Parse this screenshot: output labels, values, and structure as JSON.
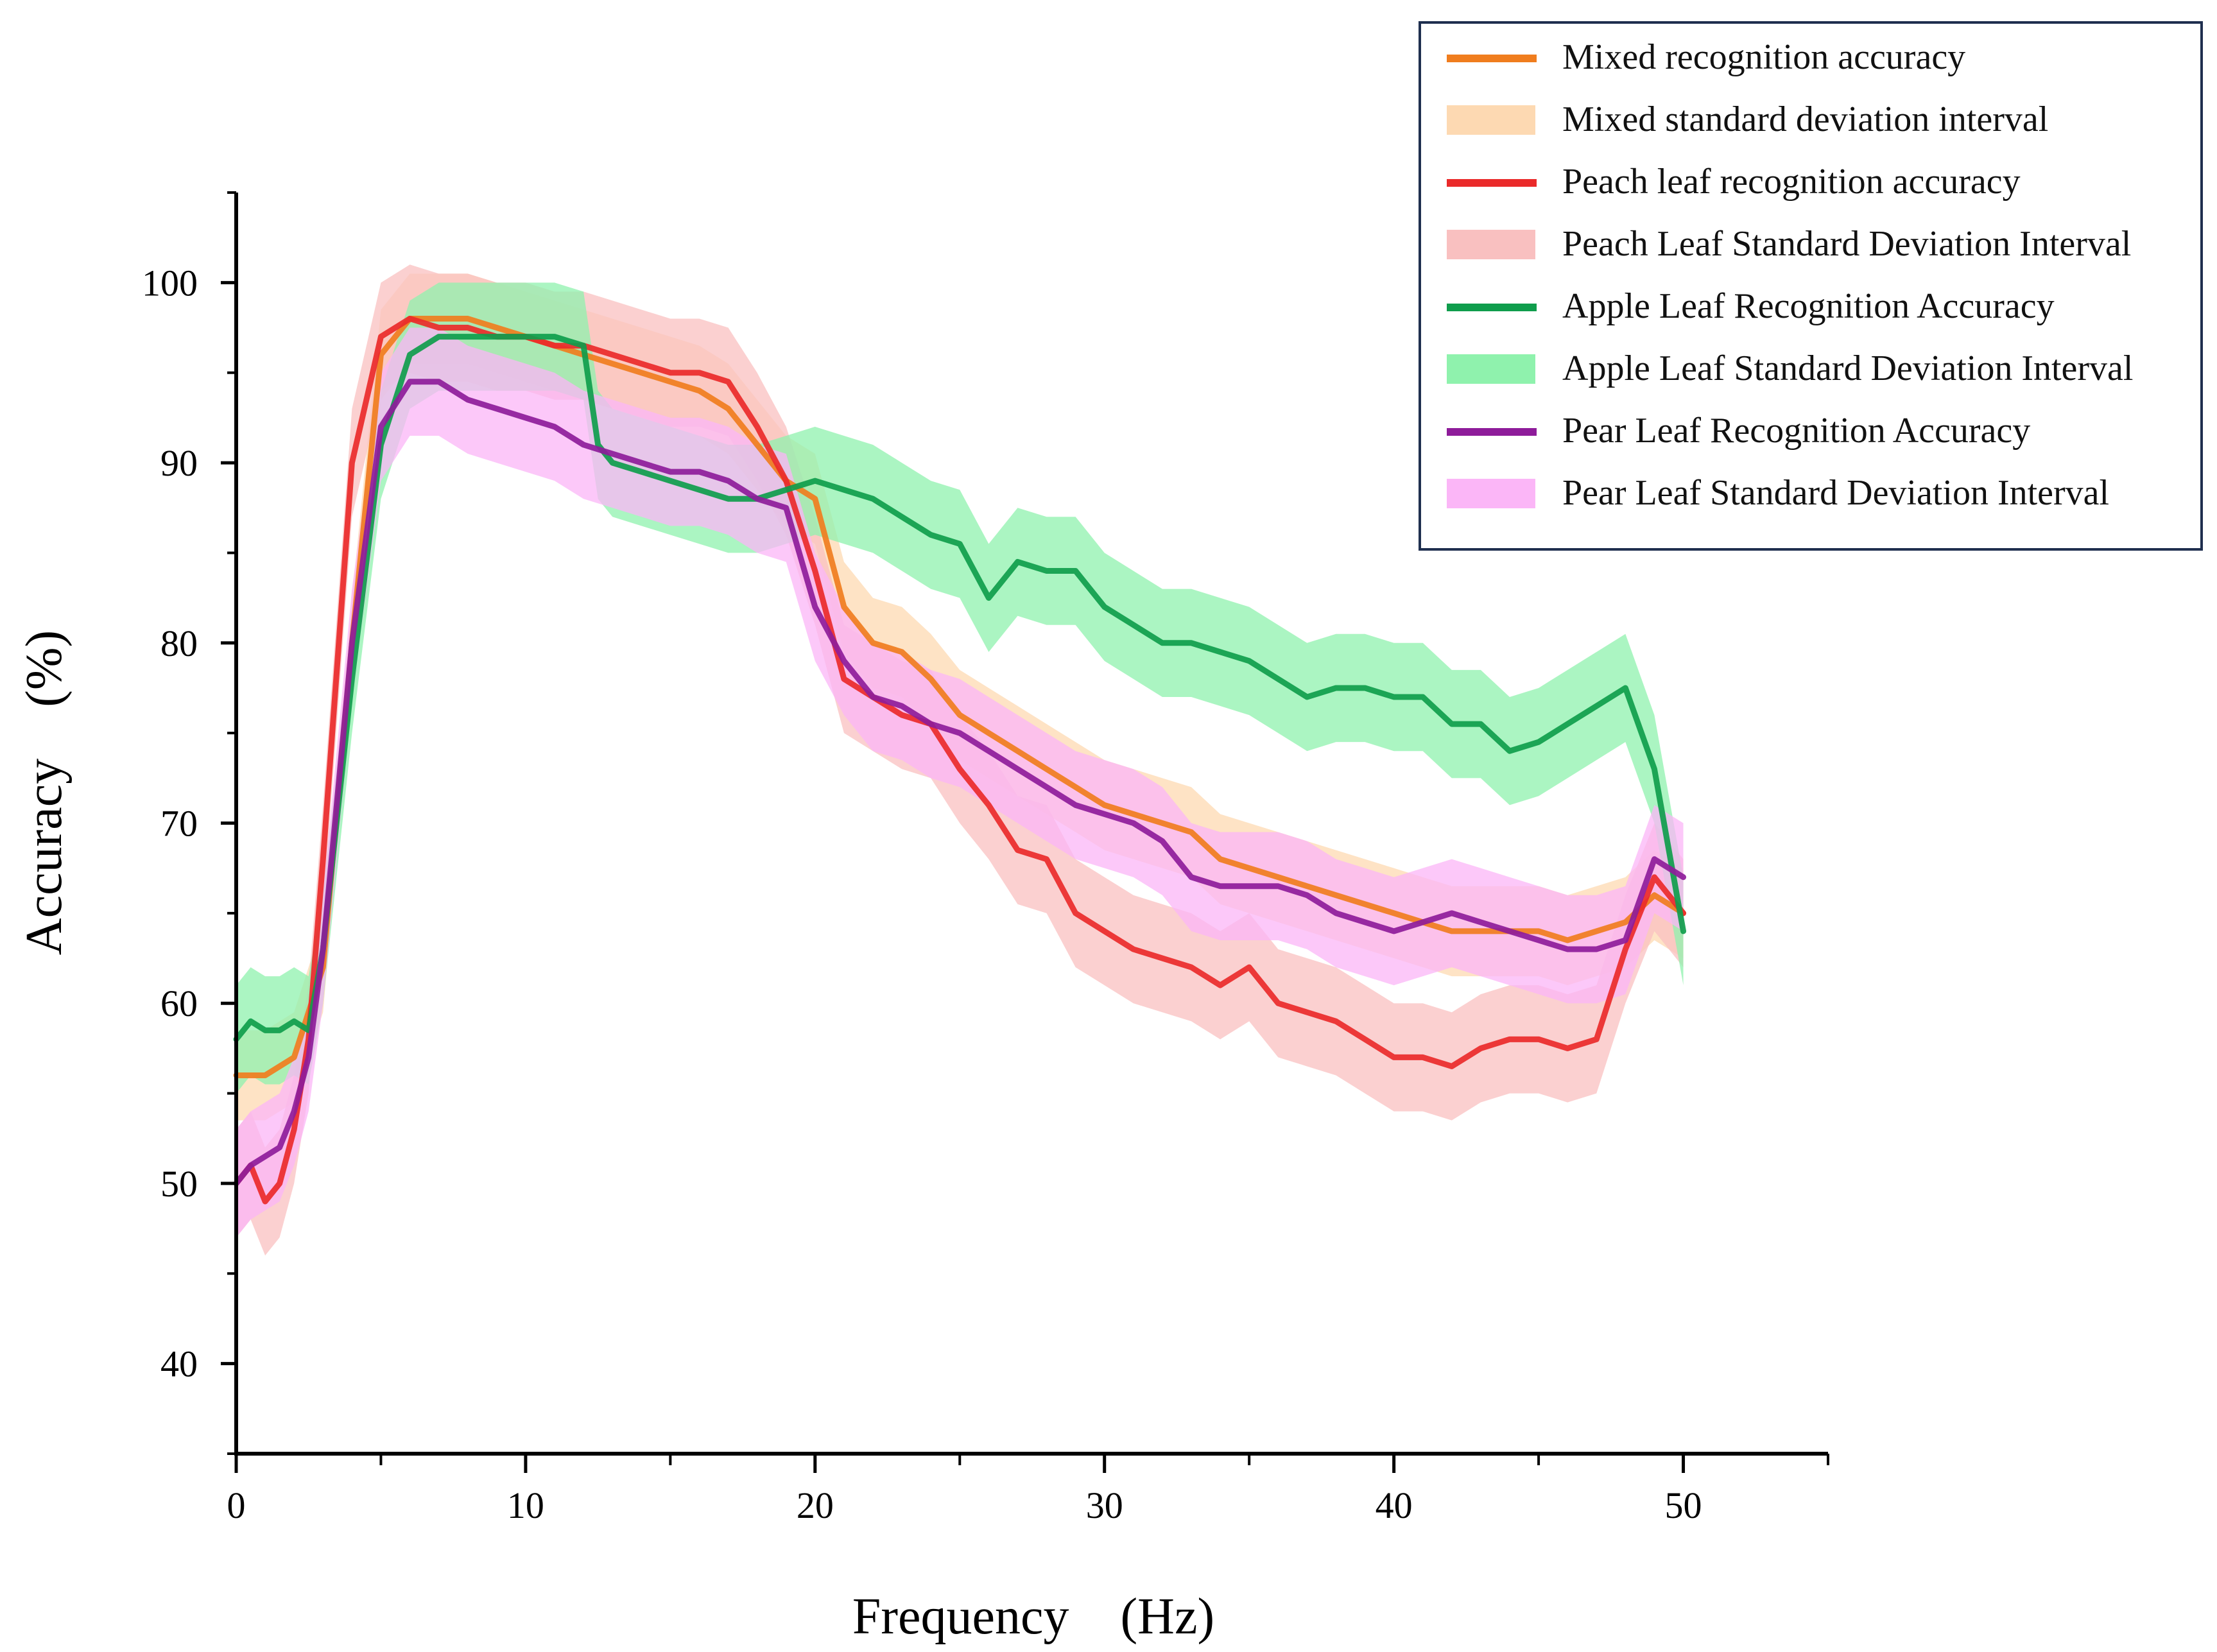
{
  "chart_data": {
    "type": "line",
    "xlabel": "Frequency　(Hz)",
    "ylabel": "Accuracy　(%)",
    "xlim": [
      0,
      55
    ],
    "ylim": [
      35,
      105
    ],
    "xticks": [
      0,
      10,
      20,
      30,
      40,
      50
    ],
    "yticks": [
      40,
      50,
      60,
      70,
      80,
      90,
      100
    ],
    "legend_position": "top-right",
    "series": [
      {
        "name": "Mixed recognition accuracy",
        "band_name": "Mixed standard deviation interval",
        "color": "#f07d1e",
        "band_color": "#fdd9b2",
        "band_width": 2.5,
        "x": [
          0,
          1,
          2,
          3,
          4,
          5,
          6,
          8,
          10,
          12,
          14,
          16,
          17,
          18,
          19,
          20,
          21,
          22,
          23,
          24,
          25,
          26,
          27,
          28,
          29,
          30,
          31,
          32,
          33,
          34,
          35,
          36,
          37,
          38,
          39,
          40,
          41,
          42,
          43,
          44,
          45,
          46,
          47,
          48,
          49,
          50
        ],
        "y": [
          56,
          56,
          57,
          62,
          80,
          96,
          98,
          98,
          97,
          96,
          95,
          94,
          93,
          91,
          89,
          88,
          82,
          80,
          79.5,
          78,
          76,
          75,
          74,
          73,
          72,
          71,
          70.5,
          70,
          69.5,
          68,
          67.5,
          67,
          66.5,
          66,
          65.5,
          65,
          64.5,
          64,
          64,
          64,
          64,
          63.5,
          64,
          64.5,
          66,
          65
        ]
      },
      {
        "name": "Peach leaf recognition accuracy",
        "band_name": "Peach Leaf Standard Deviation Interval",
        "color": "#ea2a2a",
        "band_color": "#f9c0c0",
        "band_width": 3,
        "x": [
          0,
          0.5,
          1,
          1.5,
          2,
          2.5,
          3,
          4,
          5,
          6,
          7,
          8,
          9,
          10,
          11,
          12,
          13,
          14,
          15,
          16,
          17,
          18,
          19,
          20,
          21,
          22,
          23,
          24,
          25,
          26,
          27,
          28,
          29,
          30,
          31,
          32,
          33,
          34,
          35,
          36,
          37,
          38,
          39,
          40,
          41,
          42,
          43,
          44,
          45,
          46,
          47,
          48,
          49,
          50
        ],
        "y": [
          50,
          51,
          49,
          50,
          53,
          58,
          68,
          90,
          97,
          98,
          97.5,
          97.5,
          97,
          97,
          96.5,
          96.5,
          96,
          95.5,
          95,
          95,
          94.5,
          92,
          89,
          84,
          78,
          77,
          76,
          75.5,
          73,
          71,
          68.5,
          68,
          65,
          64,
          63,
          62.5,
          62,
          61,
          62,
          60,
          59.5,
          59,
          58,
          57,
          57,
          56.5,
          57.5,
          58,
          58,
          57.5,
          58,
          63,
          67,
          65
        ]
      },
      {
        "name": "Apple Leaf Recognition Accuracy",
        "band_name": "Apple Leaf Standard Deviation Interval",
        "color": "#0f9d4c",
        "band_color": "#8ff2ad",
        "band_width": 3,
        "x": [
          0,
          0.5,
          1,
          1.5,
          2,
          2.5,
          3,
          4,
          5,
          6,
          7,
          8,
          9,
          10,
          11,
          12,
          12.5,
          13,
          14,
          15,
          16,
          17,
          18,
          19,
          20,
          21,
          22,
          23,
          24,
          25,
          26,
          27,
          28,
          29,
          30,
          31,
          32,
          33,
          34,
          35,
          36,
          37,
          38,
          39,
          40,
          41,
          42,
          43,
          44,
          45,
          46,
          47,
          48,
          49,
          50
        ],
        "y": [
          58,
          59,
          58.5,
          58.5,
          59,
          58.5,
          63,
          78,
          91,
          96,
          97,
          97,
          97,
          97,
          97,
          96.5,
          91,
          90,
          89.5,
          89,
          88.5,
          88,
          88,
          88.5,
          89,
          88.5,
          88,
          87,
          86,
          85.5,
          82.5,
          84.5,
          84,
          84,
          82,
          81,
          80,
          80,
          79.5,
          79,
          78,
          77,
          77.5,
          77.5,
          77,
          77,
          75.5,
          75.5,
          74,
          74.5,
          75.5,
          76.5,
          77.5,
          73,
          64
        ]
      },
      {
        "name": "Pear Leaf Recognition Accuracy",
        "band_name": "Pear Leaf Standard Deviation Interval",
        "color": "#8e1c9a",
        "band_color": "#fbb6f7",
        "band_width": 3,
        "x": [
          0,
          0.5,
          1,
          1.5,
          2,
          2.5,
          3,
          4,
          5,
          6,
          7,
          8,
          9,
          10,
          11,
          12,
          13,
          14,
          15,
          16,
          17,
          18,
          19,
          20,
          21,
          22,
          23,
          24,
          25,
          26,
          27,
          28,
          29,
          30,
          31,
          32,
          33,
          34,
          35,
          36,
          37,
          38,
          39,
          40,
          41,
          42,
          43,
          44,
          45,
          46,
          47,
          48,
          49,
          50
        ],
        "y": [
          50,
          51,
          51.5,
          52,
          54,
          57,
          63,
          80,
          92,
          94.5,
          94.5,
          93.5,
          93,
          92.5,
          92,
          91,
          90.5,
          90,
          89.5,
          89.5,
          89,
          88,
          87.5,
          82,
          79,
          77,
          76.5,
          75.5,
          75,
          74,
          73,
          72,
          71,
          70.5,
          70,
          69,
          67,
          66.5,
          66.5,
          66.5,
          66,
          65,
          64.5,
          64,
          64.5,
          65,
          64.5,
          64,
          63.5,
          63,
          63,
          63.5,
          68,
          67
        ]
      }
    ]
  }
}
